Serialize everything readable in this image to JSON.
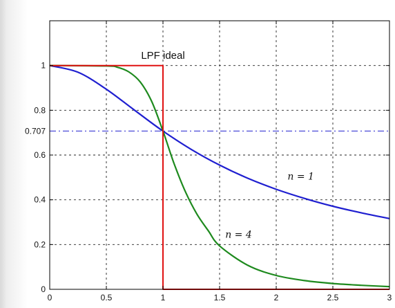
{
  "chart_data": {
    "type": "line",
    "title": "",
    "xlabel": "",
    "ylabel": "",
    "xlim": [
      0,
      3
    ],
    "ylim": [
      0,
      1.2
    ],
    "grid": true,
    "x_ticks": [
      0,
      0.5,
      1,
      1.5,
      2,
      2.5,
      3
    ],
    "x_tick_labels": [
      "0",
      "0.5",
      "1",
      "1.5",
      "2",
      "2.5",
      "3"
    ],
    "y_ticks": [
      0,
      0.2,
      0.4,
      0.6,
      0.8,
      1
    ],
    "y_tick_labels": [
      "0",
      "0.2",
      "0.4",
      "0.6",
      "0.8",
      "1"
    ],
    "reference_line": {
      "y": 0.707,
      "label": "0.707",
      "color": "#4a4ad8",
      "style": "dash-dot"
    },
    "annotations": [
      {
        "text": "LPF ideal",
        "x": 1.0,
        "y": 1.03
      }
    ],
    "series": [
      {
        "label": "n = 1",
        "label_x": 2.1,
        "label_y": 0.49,
        "color": "#1f1fd0",
        "x": [
          0,
          0.25,
          0.5,
          0.75,
          1,
          1.25,
          1.5,
          1.75,
          2,
          2.25,
          2.5,
          2.75,
          3
        ],
        "y": [
          1,
          0.97,
          0.894,
          0.8,
          0.707,
          0.625,
          0.555,
          0.496,
          0.447,
          0.406,
          0.371,
          0.342,
          0.316
        ]
      },
      {
        "label": "n = 4",
        "label_x": 1.55,
        "label_y": 0.23,
        "color": "#1e8a1e",
        "x": [
          0,
          0.5,
          0.6,
          0.7,
          0.8,
          0.9,
          1,
          1.1,
          1.2,
          1.3,
          1.4,
          1.5,
          1.75,
          2,
          2.25,
          2.5,
          2.75,
          3
        ],
        "y": [
          1,
          0.998,
          0.992,
          0.971,
          0.926,
          0.84,
          0.707,
          0.559,
          0.434,
          0.336,
          0.262,
          0.194,
          0.107,
          0.062,
          0.039,
          0.026,
          0.018,
          0.012
        ]
      },
      {
        "label": "LPF ideal",
        "color": "#e01010",
        "x": [
          0,
          1,
          1,
          3
        ],
        "y": [
          1,
          1,
          0,
          0
        ]
      }
    ]
  }
}
